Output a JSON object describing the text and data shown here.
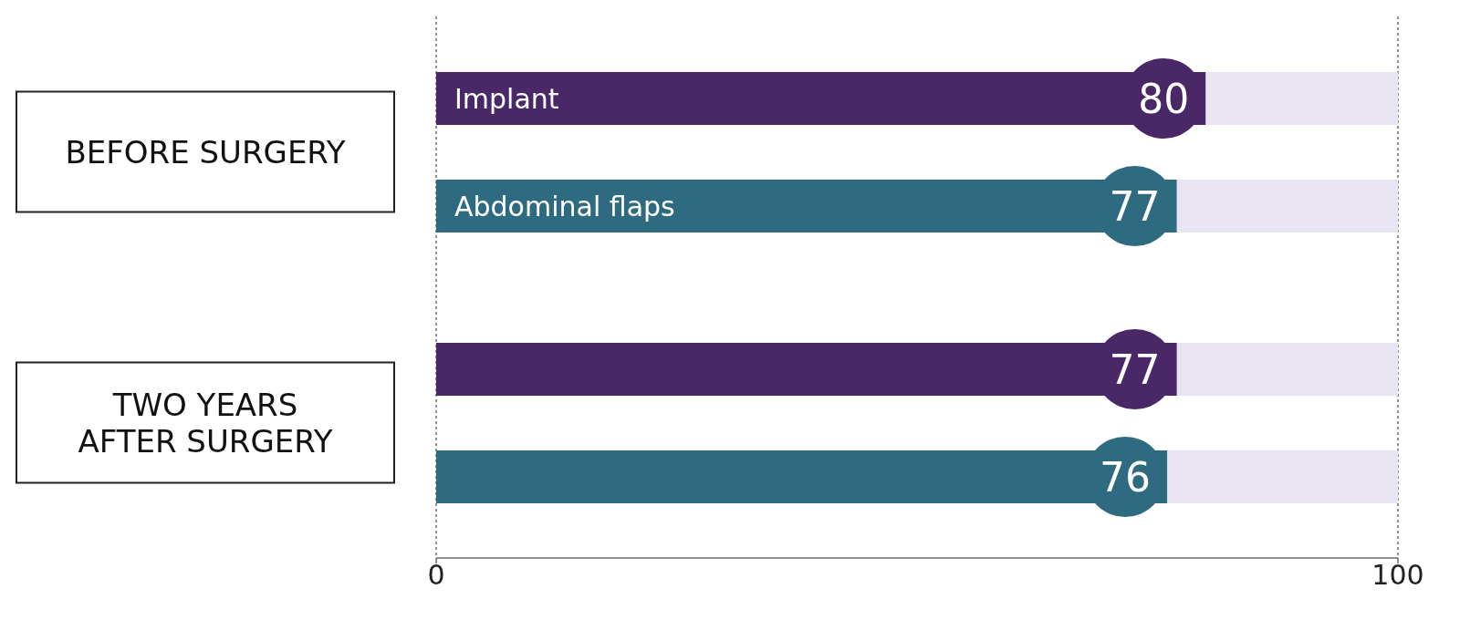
{
  "chart_data": {
    "type": "bar",
    "orientation": "horizontal",
    "categories": [
      "BEFORE SURGERY",
      "TWO YEARS AFTER SURGERY"
    ],
    "series": [
      {
        "name": "Implant",
        "color": "#4a2766",
        "values": [
          80,
          77
        ]
      },
      {
        "name": "Abdominal flaps",
        "color": "#2f6b80",
        "values": [
          77,
          76
        ]
      }
    ],
    "xlim": [
      0,
      100
    ],
    "xticks": [
      0,
      100
    ],
    "grid": "x",
    "data_labels": true
  }
}
